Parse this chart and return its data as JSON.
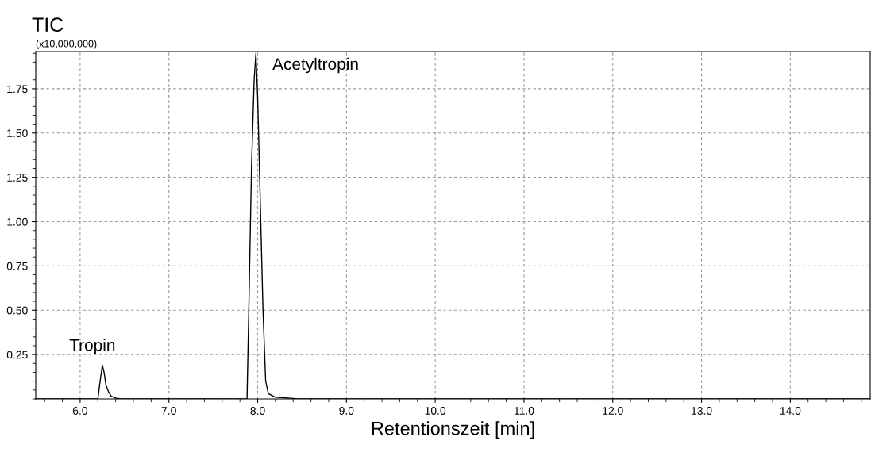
{
  "chart_data": {
    "type": "line",
    "title": "TIC",
    "ylabel": "(x10,000,000)",
    "xlabel": "Retentionszeit [min]",
    "series": [
      {
        "color": "#000000",
        "x": [
          5.5,
          6.2,
          6.22,
          6.25,
          6.27,
          6.29,
          6.32,
          6.35,
          6.4,
          6.45,
          7.88,
          7.9,
          7.93,
          7.96,
          7.98,
          8.0,
          8.03,
          8.06,
          8.09,
          8.12,
          8.2,
          8.4,
          8.45,
          14.9
        ],
        "values": [
          0,
          0,
          0.08,
          0.19,
          0.15,
          0.08,
          0.04,
          0.015,
          0.005,
          0,
          0,
          0.5,
          1.3,
          1.8,
          1.95,
          1.7,
          1.1,
          0.5,
          0.1,
          0.03,
          0.01,
          0.003,
          0,
          0
        ]
      }
    ],
    "xlim": [
      5.5,
      14.9
    ],
    "ylim": [
      0,
      1.96
    ],
    "xticks": [
      {
        "value": 6,
        "label": "6.0"
      },
      {
        "value": 7,
        "label": "7.0"
      },
      {
        "value": 8,
        "label": "8.0"
      },
      {
        "value": 9,
        "label": "9.0"
      },
      {
        "value": 10,
        "label": "10.0"
      },
      {
        "value": 11,
        "label": "11.0"
      },
      {
        "value": 12,
        "label": "12.0"
      },
      {
        "value": 13,
        "label": "13.0"
      },
      {
        "value": 14,
        "label": "14.0"
      }
    ],
    "yticks": [
      {
        "value": 0.25,
        "label": "0.25"
      },
      {
        "value": 0.5,
        "label": "0.50"
      },
      {
        "value": 0.75,
        "label": "0.75"
      },
      {
        "value": 1.0,
        "label": "1.00"
      },
      {
        "value": 1.25,
        "label": "1.25"
      },
      {
        "value": 1.5,
        "label": "1.50"
      },
      {
        "value": 1.75,
        "label": "1.75"
      }
    ],
    "annotations": [
      {
        "text": "Tropin",
        "x": 6.25,
        "y": 0.19
      },
      {
        "text": "Acetyltropin",
        "x": 7.98,
        "y": 1.95
      }
    ],
    "grid": true,
    "marker": "none",
    "line_style": "solid"
  }
}
